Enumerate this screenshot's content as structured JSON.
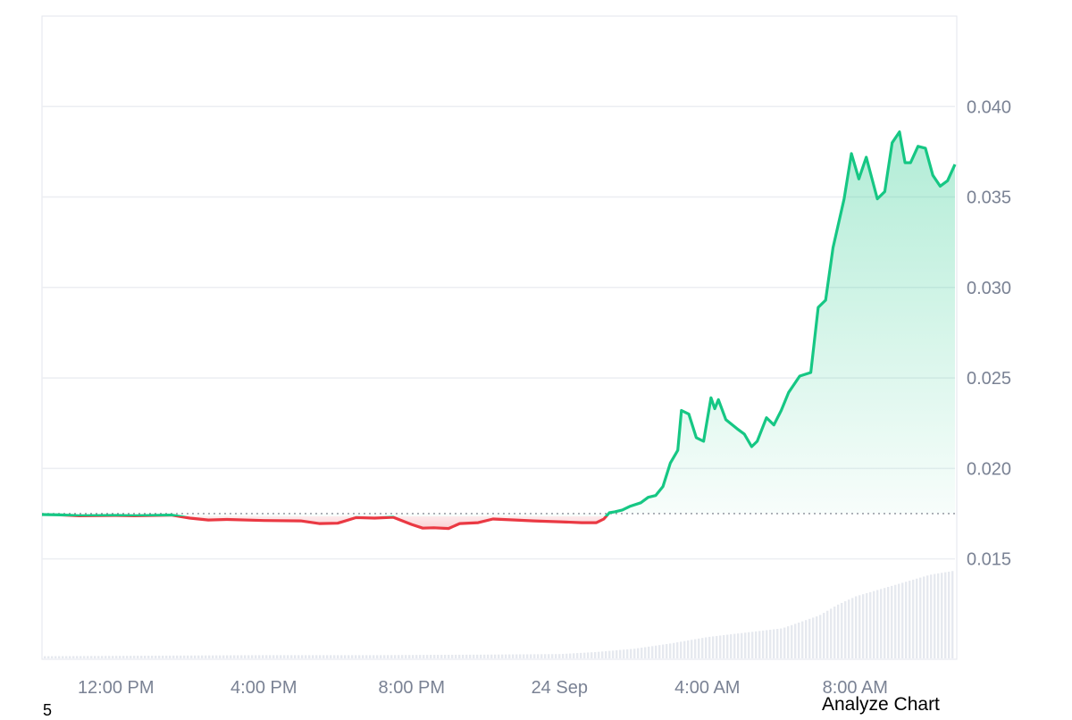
{
  "chart_data": {
    "type": "area",
    "title": "",
    "xlabel": "",
    "ylabel": "",
    "ylim": [
      0.0095,
      0.045
    ],
    "baseline": 0.0175,
    "grid": true,
    "x_ticks": [
      {
        "label": "12:00 PM",
        "hour": 12
      },
      {
        "label": "4:00 PM",
        "hour": 16
      },
      {
        "label": "8:00 PM",
        "hour": 20
      },
      {
        "label": "24 Sep",
        "hour": 24
      },
      {
        "label": "4:00 AM",
        "hour": 28
      },
      {
        "label": "8:00 AM",
        "hour": 32
      }
    ],
    "y_ticks": [
      0.015,
      0.02,
      0.025,
      0.03,
      0.035,
      0.04
    ],
    "y_tick_labels": [
      "0.015",
      "0.020",
      "0.025",
      "0.030",
      "0.035",
      "0.040"
    ],
    "x_range_hours": [
      10,
      34.7
    ],
    "colors": {
      "up": "#16c784",
      "down": "#ea3943",
      "grid": "#eceef2",
      "volume": "#e6e9ef"
    },
    "price": [
      [
        10.0,
        0.01745
      ],
      [
        10.5,
        0.01743
      ],
      [
        11.0,
        0.01738
      ],
      [
        12.0,
        0.0174
      ],
      [
        12.5,
        0.01738
      ],
      [
        13.5,
        0.01742
      ],
      [
        14.0,
        0.01725
      ],
      [
        14.5,
        0.01715
      ],
      [
        15.0,
        0.01718
      ],
      [
        16.0,
        0.01712
      ],
      [
        17.0,
        0.0171
      ],
      [
        17.5,
        0.01695
      ],
      [
        18.0,
        0.01697
      ],
      [
        18.5,
        0.01728
      ],
      [
        19.0,
        0.01725
      ],
      [
        19.5,
        0.0173
      ],
      [
        20.0,
        0.0169
      ],
      [
        20.3,
        0.0167
      ],
      [
        20.6,
        0.01672
      ],
      [
        21.0,
        0.01668
      ],
      [
        21.3,
        0.01695
      ],
      [
        21.8,
        0.017
      ],
      [
        22.2,
        0.0172
      ],
      [
        22.8,
        0.01715
      ],
      [
        23.3,
        0.0171
      ],
      [
        24.0,
        0.01705
      ],
      [
        24.6,
        0.017
      ],
      [
        25.0,
        0.017
      ],
      [
        25.2,
        0.0172
      ],
      [
        25.35,
        0.01755
      ],
      [
        25.5,
        0.0176
      ],
      [
        25.7,
        0.0177
      ],
      [
        25.9,
        0.0179
      ],
      [
        26.2,
        0.0181
      ],
      [
        26.4,
        0.0184
      ],
      [
        26.6,
        0.0185
      ],
      [
        26.8,
        0.019
      ],
      [
        27.0,
        0.0203
      ],
      [
        27.2,
        0.021
      ],
      [
        27.3,
        0.0232
      ],
      [
        27.5,
        0.023
      ],
      [
        27.7,
        0.0217
      ],
      [
        27.9,
        0.0215
      ],
      [
        28.1,
        0.0239
      ],
      [
        28.2,
        0.0233
      ],
      [
        28.3,
        0.0238
      ],
      [
        28.5,
        0.0227
      ],
      [
        28.8,
        0.0222
      ],
      [
        29.0,
        0.0219
      ],
      [
        29.2,
        0.0212
      ],
      [
        29.35,
        0.0215
      ],
      [
        29.6,
        0.0228
      ],
      [
        29.8,
        0.0224
      ],
      [
        30.0,
        0.0232
      ],
      [
        30.2,
        0.0242
      ],
      [
        30.5,
        0.0251
      ],
      [
        30.8,
        0.0253
      ],
      [
        31.0,
        0.0289
      ],
      [
        31.2,
        0.0293
      ],
      [
        31.4,
        0.0322
      ],
      [
        31.7,
        0.0349
      ],
      [
        31.9,
        0.0374
      ],
      [
        32.1,
        0.036
      ],
      [
        32.3,
        0.0372
      ],
      [
        32.6,
        0.0349
      ],
      [
        32.8,
        0.0353
      ],
      [
        33.0,
        0.038
      ],
      [
        33.2,
        0.0386
      ],
      [
        33.35,
        0.0369
      ],
      [
        33.5,
        0.0369
      ],
      [
        33.7,
        0.0378
      ],
      [
        33.9,
        0.0377
      ],
      [
        34.1,
        0.0362
      ],
      [
        34.3,
        0.0356
      ],
      [
        34.5,
        0.0359
      ],
      [
        34.7,
        0.0368
      ]
    ],
    "volume": [
      [
        10.0,
        0.02
      ],
      [
        13.0,
        0.025
      ],
      [
        16.0,
        0.03
      ],
      [
        19.0,
        0.03
      ],
      [
        22.0,
        0.035
      ],
      [
        24.0,
        0.04
      ],
      [
        25.0,
        0.06
      ],
      [
        26.0,
        0.09
      ],
      [
        27.0,
        0.14
      ],
      [
        28.0,
        0.2
      ],
      [
        29.0,
        0.24
      ],
      [
        30.0,
        0.28
      ],
      [
        31.0,
        0.4
      ],
      [
        31.5,
        0.5
      ],
      [
        32.0,
        0.58
      ],
      [
        33.0,
        0.68
      ],
      [
        34.0,
        0.78
      ],
      [
        34.7,
        0.82
      ]
    ]
  },
  "footer": {
    "left_label": "5",
    "action_label": "Analyze Chart"
  }
}
